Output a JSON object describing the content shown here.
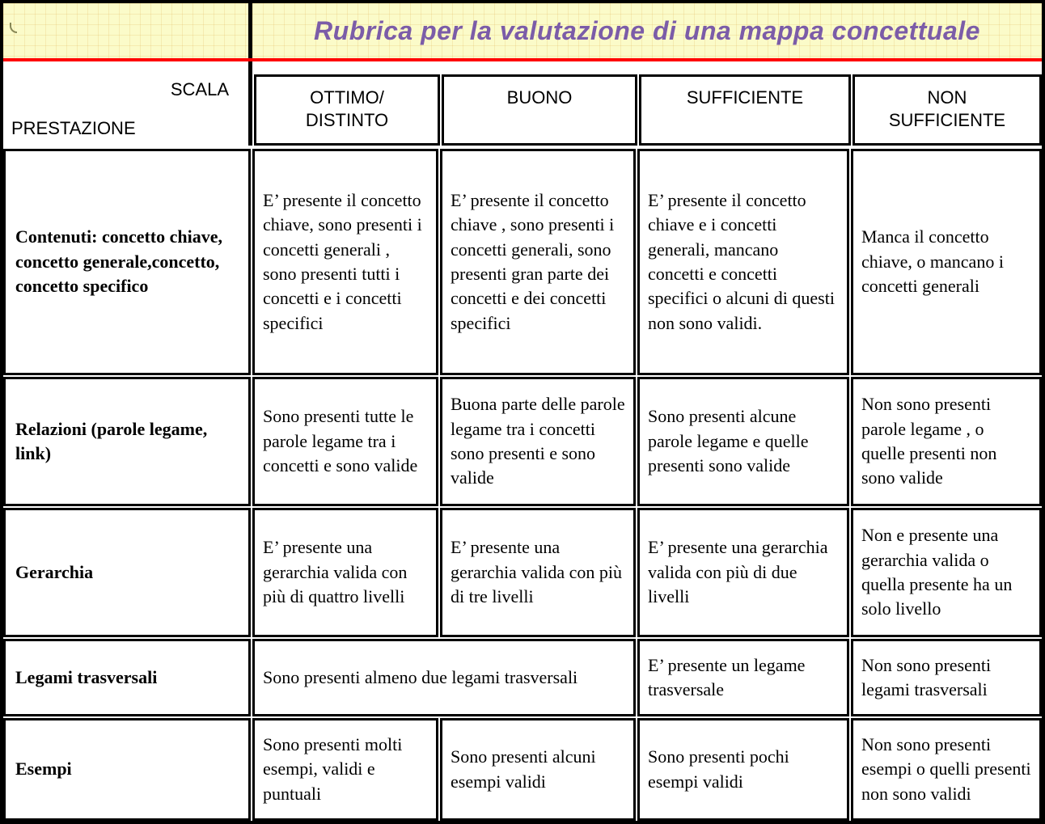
{
  "title": "Rubrica per la valutazione di una mappa concettuale",
  "corner": {
    "scale_label": "SCALA",
    "performance_label": "PRESTAZIONE"
  },
  "columns": [
    "OTTIMO/\nDISTINTO",
    "BUONO",
    "SUFFICIENTE",
    "NON\nSUFFICIENTE"
  ],
  "rows": [
    {
      "criterion": "Contenuti: concetto chiave, concetto generale,concetto, concetto specifico",
      "ottimo": "E’ presente il concetto chiave, sono presenti i concetti generali , sono presenti tutti i concetti e i concetti specifici",
      "buono": "E’ presente il concetto chiave , sono presenti i concetti generali, sono presenti gran parte dei concetti e dei concetti specifici",
      "sufficiente": "E’ presente il concetto chiave e i concetti generali, mancano concetti e concetti specifici o alcuni di questi non sono validi.",
      "non_sufficiente": "Manca il concetto chiave, o mancano i concetti generali"
    },
    {
      "criterion": "Relazioni (parole legame, link)",
      "ottimo": "Sono presenti tutte le parole legame tra i concetti e sono valide",
      "buono": "Buona parte delle parole legame tra i concetti sono presenti e sono valide",
      "sufficiente": "Sono presenti alcune parole legame e quelle presenti sono valide",
      "non_sufficiente": "Non sono presenti parole legame , o quelle presenti non sono valide"
    },
    {
      "criterion": "Gerarchia",
      "ottimo": "E’ presente una gerarchia valida con più di quattro livelli",
      "buono": "E’ presente una gerarchia valida con più di tre livelli",
      "sufficiente": "E’ presente una gerarchia valida con più di due livelli",
      "non_sufficiente": "Non e presente una gerarchia valida o quella presente ha un solo livello"
    },
    {
      "criterion": "Legami trasversali",
      "ottimo_buono": "Sono presenti almeno due legami trasversali",
      "sufficiente": "E’ presente un legame trasversale",
      "non_sufficiente": "Non sono presenti legami trasversali"
    },
    {
      "criterion": "Esempi",
      "ottimo": "Sono presenti molti esempi, validi e puntuali",
      "buono": "Sono presenti alcuni esempi validi",
      "sufficiente": "Sono presenti pochi esempi validi",
      "non_sufficiente": "Non sono presenti esempi o quelli presenti non sono validi"
    }
  ],
  "colors": {
    "band_yellow": "#fbfbc9",
    "divider_red": "#ff0000",
    "title_purple": "#7b5ca8",
    "border_black": "#000000"
  }
}
